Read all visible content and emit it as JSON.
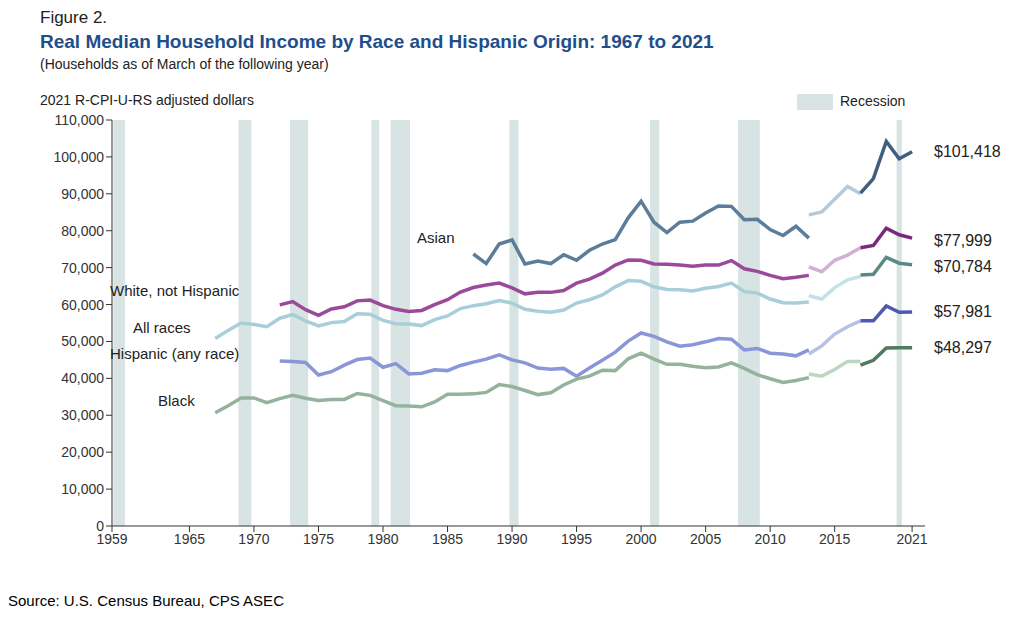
{
  "chart_data": {
    "type": "line",
    "figure_label": "Figure 2.",
    "title": "Real Median Household Income by Race and Hispanic Origin: 1967 to 2021",
    "subtitle": "(Households as of March of the following year)",
    "y_label": "2021 R-CPI-U-RS adjusted dollars",
    "source": "Source: U.S. Census Bureau, CPS ASEC",
    "recession_label": "Recession",
    "recession_color": "#d8e3e3",
    "recessions": [
      [
        1959.1,
        1960.0
      ],
      [
        1968.8,
        1969.8
      ],
      [
        1972.8,
        1974.2
      ],
      [
        1979.1,
        1979.7
      ],
      [
        1980.6,
        1982.1
      ],
      [
        1989.8,
        1990.5
      ],
      [
        2000.7,
        2001.4
      ],
      [
        2007.5,
        2009.2
      ],
      [
        2019.8,
        2020.2
      ]
    ],
    "xlim": [
      1959,
      2022
    ],
    "xticks": [
      1959,
      1965,
      1970,
      1975,
      1980,
      1985,
      1990,
      1995,
      2000,
      2005,
      2010,
      2015,
      2021
    ],
    "ylim": [
      0,
      110000
    ],
    "yticks": [
      0,
      {
        "value": 10000,
        "label": "10,000"
      },
      {
        "value": 20000,
        "label": "20,000"
      },
      {
        "value": 30000,
        "label": "30,000"
      },
      {
        "value": 40000,
        "label": "40,000"
      },
      {
        "value": 50000,
        "label": "50,000"
      },
      {
        "value": 60000,
        "label": "60,000"
      },
      {
        "value": 70000,
        "label": "70,000"
      },
      {
        "value": 80000,
        "label": "80,000"
      },
      {
        "value": 90000,
        "label": "90,000"
      },
      {
        "value": 100000,
        "label": "100,000"
      },
      {
        "value": 110000,
        "label": "110,000"
      }
    ],
    "grid": false,
    "series": [
      {
        "name": "Asian",
        "end_label": "$101,418",
        "segments": [
          {
            "color": "#5b7d99",
            "x": [
              1987,
              1988,
              1989,
              1990,
              1991,
              1992,
              1993,
              1994,
              1995,
              1996,
              1997,
              1998,
              1999,
              2000,
              2001,
              2002,
              2003,
              2004,
              2005,
              2006,
              2007,
              2008,
              2009,
              2010,
              2011,
              2012,
              2013
            ],
            "values": [
              73700,
              71100,
              76400,
              77500,
              71000,
              71800,
              71100,
              73500,
              72000,
              74700,
              76400,
              77600,
              83500,
              88000,
              82300,
              79500,
              82300,
              82600,
              84800,
              86700,
              86600,
              83000,
              83100,
              80300,
              78700,
              81200,
              78000
            ]
          },
          {
            "color": "#b6c9d8",
            "x": [
              2013,
              2014,
              2015,
              2016,
              2017
            ],
            "values": [
              84300,
              85100,
              88500,
              92000,
              90000
            ]
          },
          {
            "color": "#3f5f7d",
            "x": [
              2017,
              2018,
              2019,
              2020,
              2021
            ],
            "values": [
              90200,
              94100,
              104200,
              99500,
              101418
            ]
          }
        ]
      },
      {
        "name": "White, not Hispanic",
        "end_label": "$77,999",
        "segments": [
          {
            "color": "#9b4a9b",
            "x": [
              1972,
              1973,
              1974,
              1975,
              1976,
              1977,
              1978,
              1979,
              1980,
              1981,
              1982,
              1983,
              1984,
              1985,
              1986,
              1987,
              1988,
              1989,
              1990,
              1991,
              1992,
              1993,
              1994,
              1995,
              1996,
              1997,
              1998,
              1999,
              2000,
              2001,
              2002,
              2003,
              2004,
              2005,
              2006,
              2007,
              2008,
              2009,
              2010,
              2011,
              2012,
              2013
            ],
            "values": [
              59900,
              60800,
              58600,
              57100,
              58800,
              59400,
              61000,
              61200,
              59700,
              58700,
              58100,
              58400,
              60000,
              61300,
              63400,
              64600,
              65300,
              65800,
              64500,
              62900,
              63300,
              63300,
              63800,
              65800,
              66900,
              68500,
              70700,
              72100,
              72000,
              71000,
              70900,
              70700,
              70400,
              70700,
              70700,
              71900,
              69700,
              69000,
              67900,
              67000,
              67400,
              67900
            ]
          },
          {
            "color": "#d2b0d3",
            "x": [
              2013,
              2014,
              2015,
              2016,
              2017
            ],
            "values": [
              70200,
              68900,
              72000,
              73400,
              75400
            ]
          },
          {
            "color": "#7a2a7a",
            "x": [
              2017,
              2018,
              2019,
              2020,
              2021
            ],
            "values": [
              75400,
              76000,
              80700,
              78900,
              77999
            ]
          }
        ]
      },
      {
        "name": "All races",
        "end_label": "$70,784",
        "segments": [
          {
            "color": "#a8cfd9",
            "x": [
              1967,
              1968,
              1969,
              1970,
              1971,
              1972,
              1973,
              1974,
              1975,
              1976,
              1977,
              1978,
              1979,
              1980,
              1981,
              1982,
              1983,
              1984,
              1985,
              1986,
              1987,
              1988,
              1989,
              1990,
              1991,
              1992,
              1993,
              1994,
              1995,
              1996,
              1997,
              1998,
              1999,
              2000,
              2001,
              2002,
              2003,
              2004,
              2005,
              2006,
              2007,
              2008,
              2009,
              2010,
              2011,
              2012,
              2013
            ],
            "values": [
              50800,
              53000,
              55000,
              54600,
              54000,
              56300,
              57300,
              55600,
              54200,
              55100,
              55400,
              57500,
              57400,
              55700,
              54800,
              54700,
              54300,
              55900,
              56900,
              58900,
              59700,
              60200,
              61100,
              60400,
              58700,
              58200,
              57900,
              58500,
              60400,
              61300,
              62600,
              64800,
              66500,
              66300,
              64800,
              64100,
              64000,
              63700,
              64400,
              64900,
              65800,
              63500,
              63100,
              61500,
              60500,
              60400,
              60700
            ]
          },
          {
            "color": "#c3e1e7",
            "x": [
              2013,
              2014,
              2015,
              2016,
              2017
            ],
            "values": [
              62400,
              61500,
              64600,
              66700,
              67600
            ]
          },
          {
            "color": "#5a8a88",
            "x": [
              2017,
              2018,
              2019,
              2020,
              2021
            ],
            "values": [
              68000,
              68200,
              72800,
              71200,
              70784
            ]
          }
        ]
      },
      {
        "name": "Hispanic (any race)",
        "end_label": "$57,981",
        "segments": [
          {
            "color": "#8a96d8",
            "x": [
              1972,
              1973,
              1974,
              1975,
              1976,
              1977,
              1978,
              1979,
              1980,
              1981,
              1982,
              1983,
              1984,
              1985,
              1986,
              1987,
              1988,
              1989,
              1990,
              1991,
              1992,
              1993,
              1994,
              1995,
              1996,
              1997,
              1998,
              1999,
              2000,
              2001,
              2002,
              2003,
              2004,
              2005,
              2006,
              2007,
              2008,
              2009,
              2010,
              2011,
              2012,
              2013
            ],
            "values": [
              44700,
              44600,
              44300,
              40900,
              41800,
              43600,
              45100,
              45500,
              43000,
              44000,
              41200,
              41400,
              42300,
              42100,
              43500,
              44400,
              45200,
              46400,
              45000,
              44200,
              42800,
              42500,
              42700,
              40600,
              42800,
              44900,
              47100,
              50100,
              52300,
              51400,
              49900,
              48700,
              49100,
              49900,
              50800,
              50600,
              47700,
              48100,
              46800,
              46600,
              46100,
              47700
            ]
          },
          {
            "color": "#b9c0e8",
            "x": [
              2013,
              2014,
              2015,
              2016,
              2017
            ],
            "values": [
              46600,
              48800,
              52000,
              54000,
              55600
            ]
          },
          {
            "color": "#4d5ab0",
            "x": [
              2017,
              2018,
              2019,
              2020,
              2021
            ],
            "values": [
              55600,
              55600,
              59600,
              57900,
              57981
            ]
          }
        ]
      },
      {
        "name": "Black",
        "end_label": "$48,297",
        "segments": [
          {
            "color": "#94b39c",
            "x": [
              1967,
              1968,
              1969,
              1970,
              1971,
              1972,
              1973,
              1974,
              1975,
              1976,
              1977,
              1978,
              1979,
              1980,
              1981,
              1982,
              1983,
              1984,
              1985,
              1986,
              1987,
              1988,
              1989,
              1990,
              1991,
              1992,
              1993,
              1994,
              1995,
              1996,
              1997,
              1998,
              1999,
              2000,
              2001,
              2002,
              2003,
              2004,
              2005,
              2006,
              2007,
              2008,
              2009,
              2010,
              2011,
              2012,
              2013
            ],
            "values": [
              30700,
              32600,
              34700,
              34700,
              33400,
              34500,
              35400,
              34600,
              34000,
              34300,
              34300,
              35900,
              35400,
              34000,
              32600,
              32500,
              32300,
              33600,
              35700,
              35700,
              35800,
              36200,
              38300,
              37800,
              36700,
              35600,
              36100,
              38200,
              39800,
              40600,
              42200,
              42100,
              45300,
              46800,
              45200,
              43800,
              43800,
              43300,
              42900,
              43100,
              44200,
              42700,
              41000,
              39900,
              38900,
              39400,
              40200
            ]
          },
          {
            "color": "#bcd6c2",
            "x": [
              2013,
              2014,
              2015,
              2016,
              2017
            ],
            "values": [
              41200,
              40600,
              42400,
              44600,
              44600
            ]
          },
          {
            "color": "#4e7a60",
            "x": [
              2017,
              2018,
              2019,
              2020,
              2021
            ],
            "values": [
              43600,
              44900,
              48200,
              48300,
              48297
            ]
          }
        ]
      }
    ]
  }
}
